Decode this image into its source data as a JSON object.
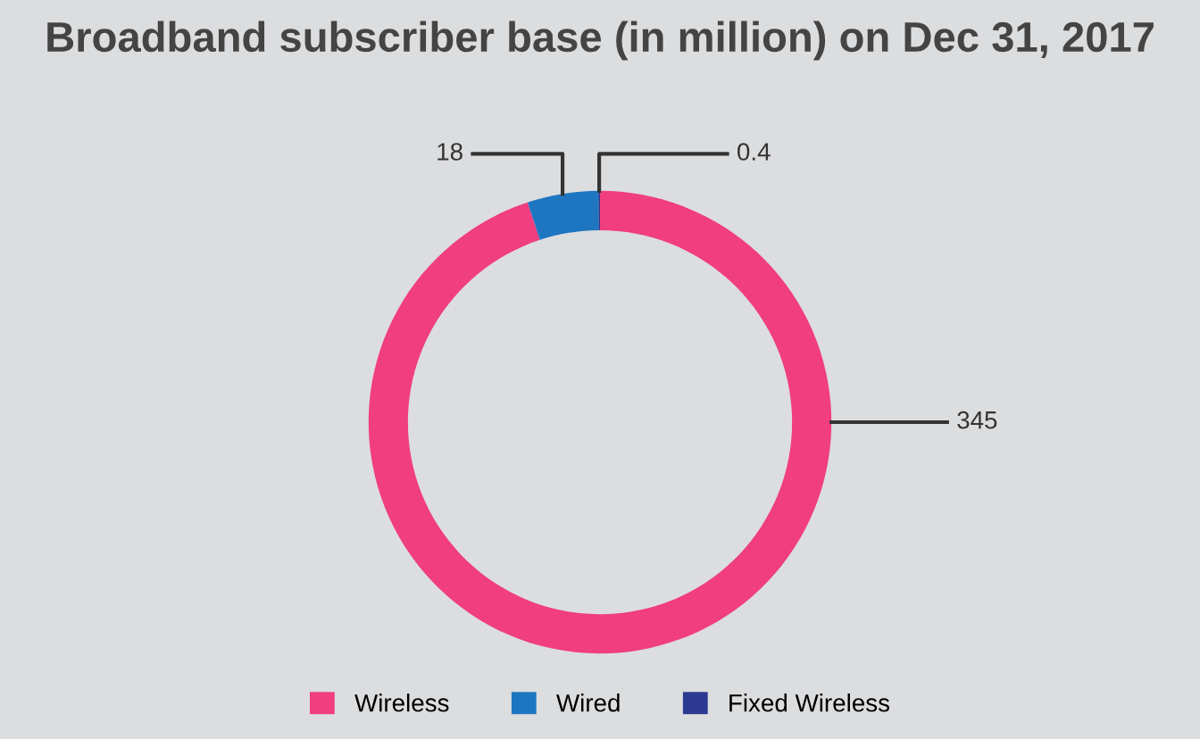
{
  "chart_data": {
    "type": "donut",
    "title": "Broadband subscriber base (in million) on Dec 31, 2017",
    "categories": [
      "Wireless",
      "Wired",
      "Fixed Wireless"
    ],
    "values": [
      345,
      18,
      0.4
    ],
    "colors": [
      "#f03e7f",
      "#1f76c0",
      "#2b3990"
    ],
    "data_labels": true,
    "legend": "bottom"
  }
}
